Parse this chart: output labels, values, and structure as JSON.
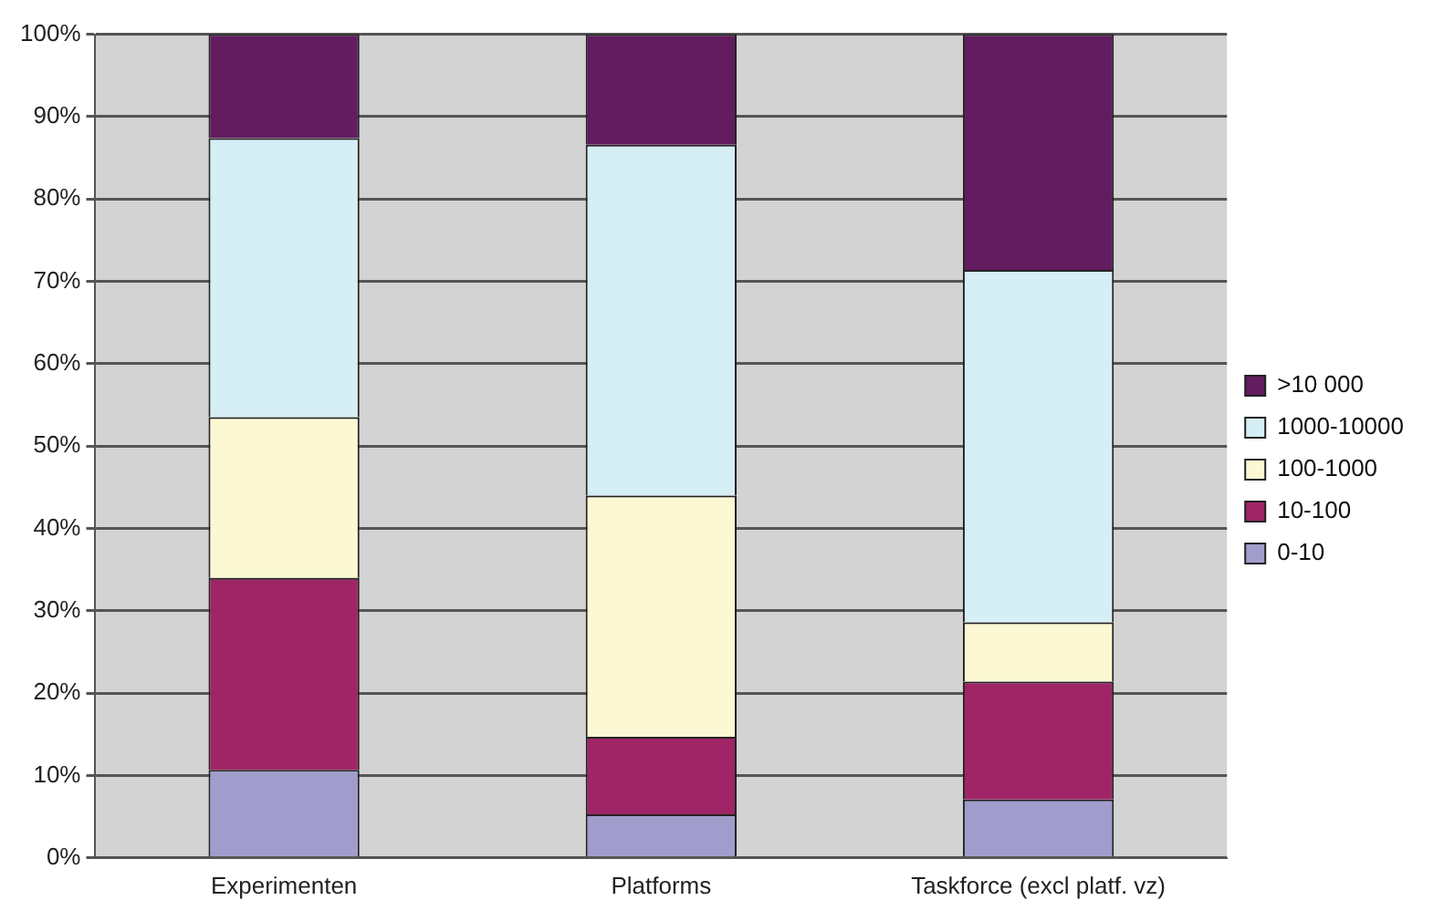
{
  "chart_data": {
    "type": "bar",
    "stacked": true,
    "categories": [
      "Experimenten",
      "Platforms",
      "Taskforce (excl platf. vz)"
    ],
    "series": [
      {
        "name": "0-10",
        "color": "#a09dcc",
        "values": [
          10.7,
          5.3,
          7.1
        ]
      },
      {
        "name": "10-100",
        "color": "#a02567",
        "values": [
          23.3,
          9.4,
          14.3
        ]
      },
      {
        "name": "100-1000",
        "color": "#fbf8d3",
        "values": [
          19.5,
          29.3,
          7.2
        ]
      },
      {
        "name": "1000-10000",
        "color": "#d6eef5",
        "values": [
          33.9,
          42.6,
          42.8
        ]
      },
      {
        "name": ">10 000",
        "color": "#621c5f",
        "values": [
          12.6,
          13.4,
          28.6
        ]
      }
    ],
    "ylim": [
      0,
      100
    ],
    "yticks": [
      {
        "value": 0,
        "label": "0%"
      },
      {
        "value": 10,
        "label": "10%"
      },
      {
        "value": 20,
        "label": "20%"
      },
      {
        "value": 30,
        "label": "30%"
      },
      {
        "value": 40,
        "label": "40%"
      },
      {
        "value": 50,
        "label": "50%"
      },
      {
        "value": 60,
        "label": "60%"
      },
      {
        "value": 70,
        "label": "70%"
      },
      {
        "value": 80,
        "label": "80%"
      },
      {
        "value": 90,
        "label": "90%"
      },
      {
        "value": 100,
        "label": "100%"
      }
    ],
    "grid": "y",
    "legend": "right"
  }
}
